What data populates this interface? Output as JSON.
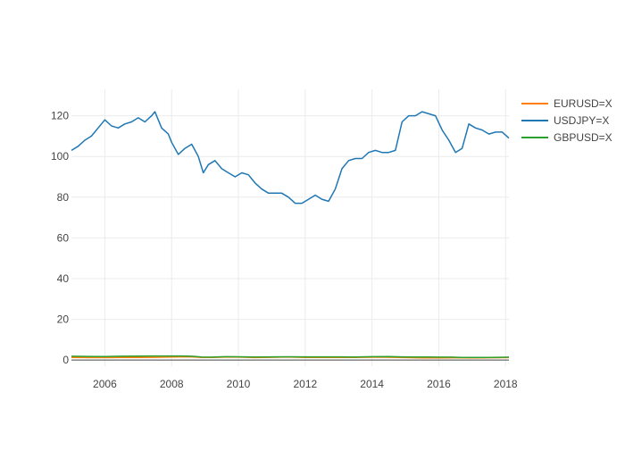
{
  "chart_data": {
    "type": "line",
    "title": "",
    "xlabel": "",
    "ylabel": "",
    "xlim": [
      2005.0,
      2018.1
    ],
    "ylim": [
      -3,
      133
    ],
    "x_ticks": [
      2006,
      2008,
      2010,
      2012,
      2014,
      2016,
      2018
    ],
    "x_tick_labels": [
      "2006",
      "2008",
      "2010",
      "2012",
      "2014",
      "2016",
      "2018"
    ],
    "y_ticks": [
      0,
      20,
      40,
      60,
      80,
      100,
      120
    ],
    "y_tick_labels": [
      "0",
      "20",
      "40",
      "60",
      "80",
      "100",
      "120"
    ],
    "grid": true,
    "legend_position": "top-right",
    "series": [
      {
        "name": "EURUSD=X",
        "color": "#ff7f0e",
        "x": [
          2005.0,
          2005.5,
          2006.0,
          2006.5,
          2007.0,
          2007.5,
          2008.0,
          2008.3,
          2008.6,
          2008.9,
          2009.2,
          2009.6,
          2010.0,
          2010.5,
          2011.0,
          2011.3,
          2011.6,
          2012.0,
          2012.5,
          2013.0,
          2013.5,
          2014.0,
          2014.4,
          2014.8,
          2015.0,
          2015.5,
          2016.0,
          2016.5,
          2017.0,
          2017.5,
          2018.0,
          2018.1
        ],
        "y": [
          1.3,
          1.22,
          1.2,
          1.27,
          1.32,
          1.35,
          1.47,
          1.55,
          1.58,
          1.28,
          1.3,
          1.42,
          1.44,
          1.23,
          1.34,
          1.42,
          1.44,
          1.3,
          1.24,
          1.32,
          1.32,
          1.37,
          1.39,
          1.26,
          1.2,
          1.1,
          1.08,
          1.11,
          1.05,
          1.14,
          1.2,
          1.23
        ]
      },
      {
        "name": "USDJPY=X",
        "color": "#1f77b4",
        "x": [
          2005.0,
          2005.2,
          2005.4,
          2005.6,
          2005.8,
          2006.0,
          2006.2,
          2006.4,
          2006.6,
          2006.8,
          2007.0,
          2007.2,
          2007.4,
          2007.5,
          2007.7,
          2007.9,
          2008.0,
          2008.2,
          2008.4,
          2008.6,
          2008.8,
          2008.95,
          2009.1,
          2009.3,
          2009.5,
          2009.7,
          2009.9,
          2010.1,
          2010.3,
          2010.5,
          2010.7,
          2010.9,
          2011.1,
          2011.3,
          2011.5,
          2011.7,
          2011.9,
          2012.1,
          2012.3,
          2012.5,
          2012.7,
          2012.9,
          2013.1,
          2013.3,
          2013.5,
          2013.7,
          2013.9,
          2014.1,
          2014.3,
          2014.5,
          2014.7,
          2014.9,
          2015.1,
          2015.3,
          2015.5,
          2015.7,
          2015.9,
          2016.1,
          2016.3,
          2016.5,
          2016.7,
          2016.9,
          2017.1,
          2017.3,
          2017.5,
          2017.7,
          2017.9,
          2018.1
        ],
        "y": [
          103,
          105,
          108,
          110,
          114,
          118,
          115,
          114,
          116,
          117,
          119,
          117,
          120,
          122,
          114,
          111,
          107,
          101,
          104,
          106,
          100,
          92,
          96,
          98,
          94,
          92,
          90,
          92,
          91,
          87,
          84,
          82,
          82,
          82,
          80,
          77,
          77,
          79,
          81,
          79,
          78,
          84,
          94,
          98,
          99,
          99,
          102,
          103,
          102,
          102,
          103,
          117,
          120,
          120,
          122,
          121,
          120,
          113,
          108,
          102,
          104,
          116,
          114,
          113,
          111,
          112,
          112,
          109
        ]
      },
      {
        "name": "GBPUSD=X",
        "color": "#2ca02c",
        "x": [
          2005.0,
          2005.5,
          2006.0,
          2006.5,
          2007.0,
          2007.5,
          2007.9,
          2008.3,
          2008.6,
          2008.9,
          2009.2,
          2009.6,
          2010.0,
          2010.5,
          2011.0,
          2011.5,
          2012.0,
          2012.5,
          2013.0,
          2013.5,
          2014.0,
          2014.5,
          2014.9,
          2015.3,
          2015.7,
          2016.0,
          2016.4,
          2016.7,
          2017.0,
          2017.5,
          2018.0,
          2018.1
        ],
        "y": [
          1.88,
          1.8,
          1.74,
          1.87,
          1.96,
          2.0,
          2.02,
          1.98,
          1.85,
          1.5,
          1.45,
          1.65,
          1.6,
          1.5,
          1.58,
          1.62,
          1.57,
          1.58,
          1.55,
          1.52,
          1.66,
          1.7,
          1.57,
          1.5,
          1.53,
          1.45,
          1.42,
          1.27,
          1.24,
          1.29,
          1.38,
          1.41
        ]
      }
    ]
  }
}
